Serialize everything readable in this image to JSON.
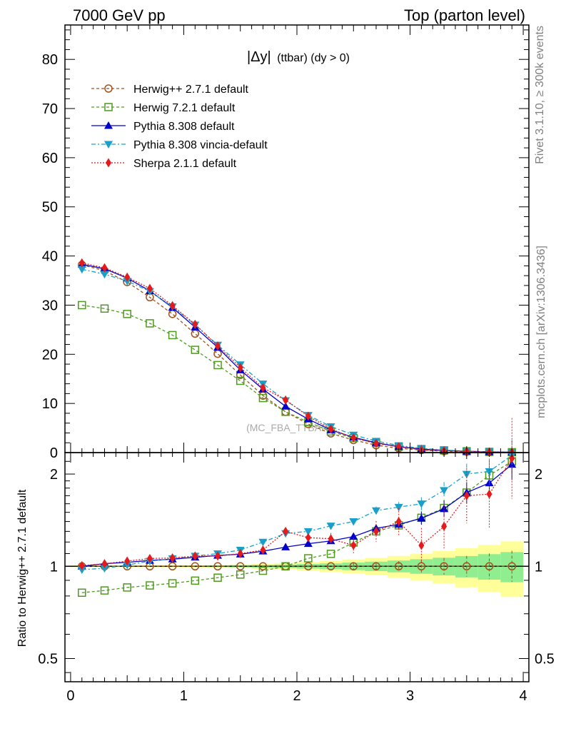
{
  "header": {
    "left": "7000 GeV pp",
    "right": "Top (parton level)"
  },
  "side": {
    "rivet": "Rivet 3.1.10, ≥ 300k events",
    "mcplots": "mcplots.cern.ch [arXiv:1306.3436]"
  },
  "chart_data": {
    "type": "line",
    "title_main": "|Δy|",
    "title_sub": "(ttbar) (dy > 0)",
    "watermark": "(MC_FBA_TTBAR)",
    "xlabel": "",
    "ylabel_top": "",
    "ylabel_ratio": "Ratio to Herwig++ 2.7.1 default",
    "xlim": [
      -0.05,
      4.05
    ],
    "ylim_top": [
      0,
      87
    ],
    "ylim_ratio_log": [
      0.42,
      2.35
    ],
    "x_ticks": [
      "0",
      "1",
      "2",
      "3",
      "4"
    ],
    "y_ticks_top": [
      "0",
      "10",
      "20",
      "30",
      "40",
      "50",
      "60",
      "70",
      "80"
    ],
    "y_ticks_ratio": [
      "0.5",
      "1",
      "2"
    ],
    "x": [
      0.1,
      0.3,
      0.5,
      0.7,
      0.9,
      1.1,
      1.3,
      1.5,
      1.7,
      1.9,
      2.1,
      2.3,
      2.5,
      2.7,
      2.9,
      3.1,
      3.3,
      3.5,
      3.7,
      3.9
    ],
    "series": [
      {
        "name": "Herwig++ 2.7.1 default",
        "color": "#a0521c",
        "marker": "circle-open",
        "dash": "4,3",
        "values": [
          38.2,
          37.0,
          34.7,
          31.6,
          28.2,
          24.2,
          20.1,
          15.8,
          11.6,
          8.3,
          5.8,
          3.9,
          2.55,
          1.5,
          0.88,
          0.5,
          0.29,
          0.15,
          0.075,
          0.035
        ],
        "ratio": [
          1.0,
          1.0,
          1.0,
          1.0,
          1.0,
          1.0,
          1.0,
          1.0,
          1.0,
          1.0,
          1.0,
          1.0,
          1.0,
          1.0,
          1.0,
          1.0,
          1.0,
          1.0,
          1.0,
          1.0
        ]
      },
      {
        "name": "Herwig 7.2.1 default",
        "color": "#4e9a1e",
        "marker": "square-open",
        "dash": "4,3",
        "values": [
          30.0,
          29.3,
          28.2,
          26.3,
          23.9,
          20.9,
          17.8,
          14.6,
          11.1,
          8.3,
          6.2,
          4.3,
          2.95,
          1.95,
          1.18,
          0.72,
          0.45,
          0.27,
          0.15,
          0.077
        ],
        "ratio": [
          0.82,
          0.834,
          0.853,
          0.866,
          0.88,
          0.898,
          0.918,
          0.94,
          0.967,
          1.0,
          1.062,
          1.098,
          1.195,
          1.3,
          1.36,
          1.44,
          1.55,
          1.74,
          1.98,
          2.2
        ]
      },
      {
        "name": "Pythia 8.308 default",
        "color": "#0000cc",
        "marker": "triangle-up",
        "dash": "",
        "values": [
          38.3,
          37.4,
          35.5,
          32.9,
          29.5,
          25.5,
          21.4,
          16.8,
          12.9,
          9.4,
          6.8,
          4.6,
          3.1,
          2.0,
          1.22,
          0.72,
          0.43,
          0.26,
          0.14,
          0.075
        ],
        "ratio": [
          1.0,
          1.02,
          1.03,
          1.045,
          1.055,
          1.07,
          1.085,
          1.095,
          1.12,
          1.155,
          1.185,
          1.21,
          1.25,
          1.33,
          1.37,
          1.435,
          1.54,
          1.74,
          1.87,
          2.15
        ]
      },
      {
        "name": "Pythia 8.308 vincia-default",
        "color": "#1aa0c8",
        "marker": "triangle-down",
        "dash": "6,3,2,3",
        "values": [
          37.3,
          36.3,
          34.9,
          32.8,
          29.7,
          26.0,
          21.9,
          17.9,
          14.0,
          10.6,
          7.6,
          5.3,
          3.6,
          2.35,
          1.45,
          0.85,
          0.53,
          0.3,
          0.16,
          0.08
        ],
        "ratio": [
          0.975,
          0.985,
          1.01,
          1.04,
          1.06,
          1.08,
          1.1,
          1.13,
          1.2,
          1.28,
          1.3,
          1.355,
          1.4,
          1.52,
          1.56,
          1.6,
          1.77,
          2.0,
          2.04,
          2.3
        ]
      },
      {
        "name": "Sherpa 2.1.1 default",
        "color": "#e41a1c",
        "marker": "diamond",
        "dash": "2,2",
        "values": [
          38.6,
          37.6,
          35.7,
          33.4,
          29.9,
          26.1,
          21.7,
          17.3,
          13.2,
          10.7,
          7.4,
          4.8,
          3.0,
          1.85,
          1.2,
          0.55,
          0.39,
          0.26,
          0.13,
          0.075
        ],
        "ratio": [
          1.005,
          1.02,
          1.04,
          1.06,
          1.065,
          1.08,
          1.08,
          1.1,
          1.13,
          1.3,
          1.24,
          1.23,
          1.17,
          1.3,
          1.4,
          1.17,
          1.35,
          1.7,
          1.72,
          2.25
        ]
      }
    ]
  }
}
